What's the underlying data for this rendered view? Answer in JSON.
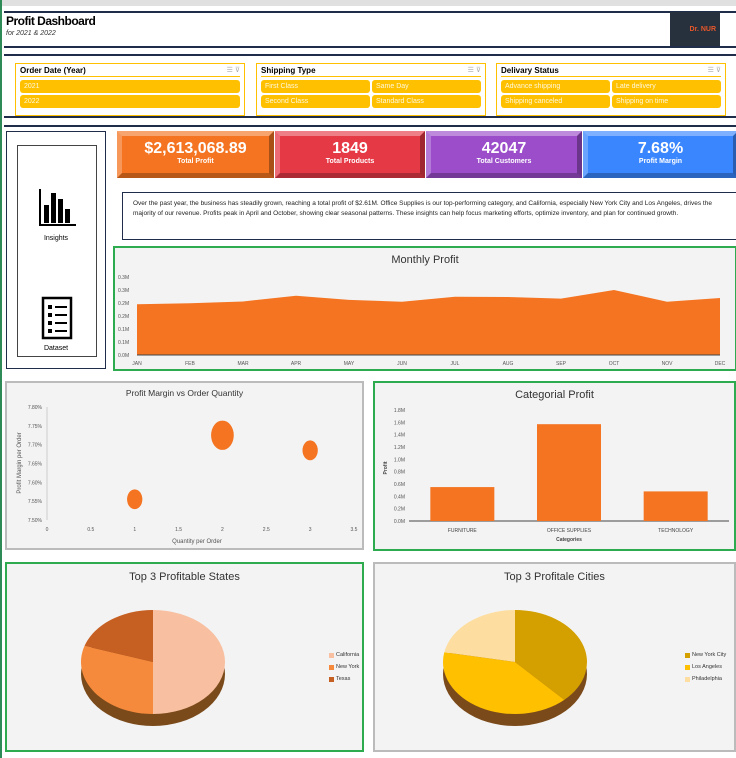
{
  "header": {
    "title": "Profit Dashboard",
    "subtitle": "for 2021 & 2022",
    "logo": "Dr. NUR"
  },
  "slicers": [
    {
      "title": "Order Date (Year)",
      "items": [
        "2021",
        "2022"
      ]
    },
    {
      "title": "Shipping Type",
      "items": [
        "First Class",
        "Same Day",
        "Second Class",
        "Standard Class"
      ]
    },
    {
      "title": "Delivary Status",
      "items": [
        "Advance shipping",
        "Late delivery",
        "Shipping canceled",
        "Shipping on time"
      ]
    }
  ],
  "kpis": [
    {
      "value": "$2,613,068.89",
      "label": "Total Profit",
      "color": "#f47421"
    },
    {
      "value": "1849",
      "label": "Total Products",
      "color": "#e63946"
    },
    {
      "value": "42047",
      "label": "Total Customers",
      "color": "#9b4dca"
    },
    {
      "value": "7.68%",
      "label": "Profit Margin",
      "color": "#3a86ff"
    }
  ],
  "nav": {
    "insights": "Insights",
    "dataset": "Dataset"
  },
  "insight_text": "Over the past year, the business has steadily grown, reaching a total profit of $2.61M. Office Supplies is our top-performing category, and California, especially New York City and Los Angeles, drives the majority of our revenue. Profits peak in April and October, showing clear seasonal patterns. These insights can help focus marketing efforts, optimize inventory, and plan for continued growth.",
  "chart_data": [
    {
      "type": "area",
      "title": "Monthly Profit",
      "categories": [
        "JAN",
        "FEB",
        "MAR",
        "APR",
        "MAY",
        "JUN",
        "JUL",
        "AUG",
        "SEP",
        "OCT",
        "NOV",
        "DEC"
      ],
      "values": [
        0.195,
        0.199,
        0.206,
        0.228,
        0.212,
        0.205,
        0.224,
        0.223,
        0.217,
        0.25,
        0.205,
        0.219
      ],
      "yticks": [
        "0.0M",
        "0.1M",
        "0.1M",
        "0.2M",
        "0.2M",
        "0.3M",
        "0.3M"
      ],
      "ylim": [
        0,
        0.3
      ],
      "color": "#f47421"
    },
    {
      "type": "scatter",
      "title": "Profit Margin vs Order Quantity",
      "xlabel": "Quantity per Order",
      "ylabel": "Profit Margin per Order",
      "x": [
        1,
        2,
        3
      ],
      "y": [
        7.555,
        7.725,
        7.685
      ],
      "size": [
        1,
        2.2,
        1
      ],
      "xticks": [
        "0",
        "0.5",
        "1",
        "1.5",
        "2",
        "2.5",
        "3",
        "3.5"
      ],
      "xlim": [
        0,
        3.5
      ],
      "yticks": [
        "7.50%",
        "7.55%",
        "7.60%",
        "7.65%",
        "7.70%",
        "7.75%",
        "7.80%"
      ],
      "ylim": [
        7.5,
        7.8
      ]
    },
    {
      "type": "bar",
      "title": "Categorial Profit",
      "xlabel": "Categories",
      "ylabel": "Profit",
      "categories": [
        "FURNITURE",
        "OFFICE SUPPLIES",
        "TECHNOLOGY"
      ],
      "values": [
        0.55,
        1.57,
        0.48
      ],
      "yticks": [
        "0.0M",
        "0.2M",
        "0.4M",
        "0.6M",
        "0.8M",
        "1.0M",
        "1.2M",
        "1.4M",
        "1.6M",
        "1.8M"
      ],
      "ylim": [
        0,
        1.8
      ]
    },
    {
      "type": "pie",
      "title": "Top 3 Profitable States",
      "labels": [
        "California",
        "New York",
        "Texas"
      ],
      "values": [
        50,
        30,
        20
      ],
      "colors": [
        "#f8bfa0",
        "#f58a3c",
        "#c65f22"
      ]
    },
    {
      "type": "pie",
      "title": "Top 3 Profitale Cities",
      "labels": [
        "New York City",
        "Los Angeles",
        "Philadelphia"
      ],
      "values": [
        38,
        40,
        22
      ],
      "colors": [
        "#d4a000",
        "#ffc000",
        "#fddea0"
      ]
    }
  ]
}
